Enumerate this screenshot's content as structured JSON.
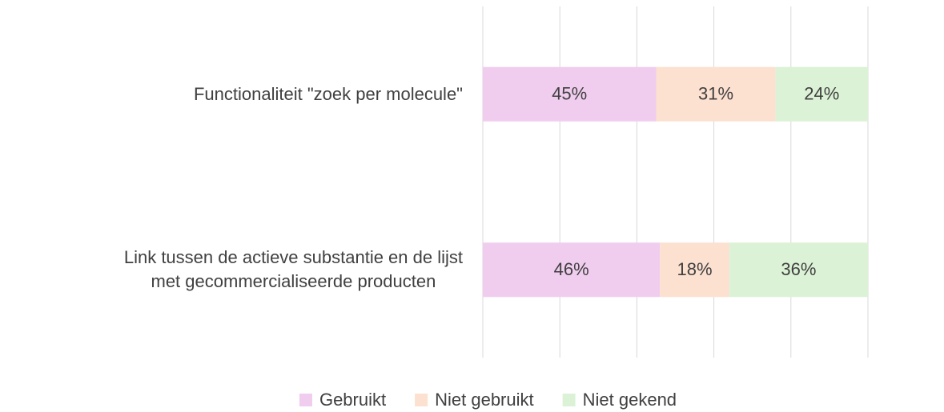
{
  "chart_data": {
    "type": "stacked_barh",
    "categories": [
      "Functionaliteit \"zoek per molecule\"",
      "Link tussen de actieve substantie en de lijst\nmet gecommercialiseerde producten"
    ],
    "series": [
      {
        "name": "Gebruikt",
        "color": "#f0cdee",
        "values": [
          45,
          46
        ],
        "value_labels": [
          "45%",
          "46%"
        ]
      },
      {
        "name": "Niet gebruikt",
        "color": "#fce0d0",
        "values": [
          31,
          18
        ],
        "value_labels": [
          "31%",
          "18%"
        ]
      },
      {
        "name": "Niet gekend",
        "color": "#dcf2d6",
        "values": [
          24,
          36
        ],
        "value_labels": [
          "24%",
          "36%"
        ]
      }
    ],
    "xlim": [
      0,
      100
    ],
    "xticks": [
      0,
      20,
      40,
      60,
      80,
      100
    ],
    "grid": true,
    "legend": "bottom"
  }
}
